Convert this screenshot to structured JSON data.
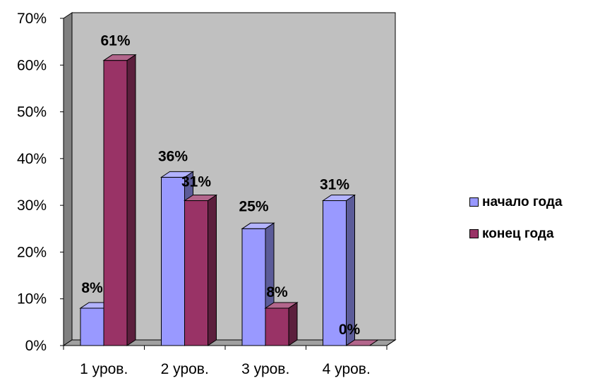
{
  "chart_data": {
    "type": "bar",
    "categories": [
      "1 уров.",
      "2 уров.",
      "3 уров.",
      "4 уров."
    ],
    "series": [
      {
        "name": "начало года",
        "values": [
          8,
          36,
          25,
          31
        ],
        "labels": [
          "8%",
          "36%",
          "25%",
          "31%"
        ]
      },
      {
        "name": "конец года",
        "values": [
          61,
          31,
          8,
          0
        ],
        "labels": [
          "61%",
          "31%",
          "8%",
          "0%"
        ]
      }
    ],
    "y_ticks": [
      "0%",
      "10%",
      "20%",
      "30%",
      "40%",
      "50%",
      "60%",
      "70%"
    ],
    "ylim": [
      0,
      70
    ],
    "grid": false,
    "legend_position": "right",
    "plot_background": "#c0c0c0",
    "series_colors": [
      "#9999ff",
      "#993366"
    ],
    "title": "",
    "xlabel": "",
    "ylabel": ""
  }
}
